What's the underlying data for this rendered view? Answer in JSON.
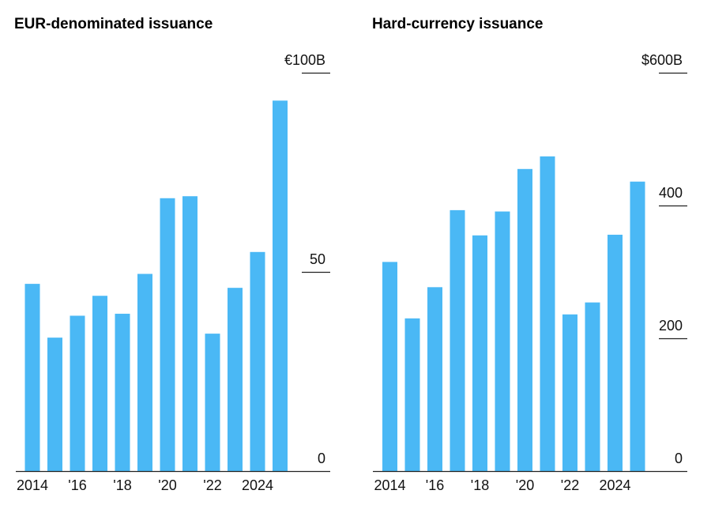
{
  "chart_data": [
    {
      "type": "bar",
      "title": "EUR-denominated issuance",
      "x": [
        2014,
        2015,
        2016,
        2017,
        2018,
        2019,
        2020,
        2021,
        2022,
        2023,
        2024,
        2025
      ],
      "values": [
        47,
        33.5,
        39,
        44,
        39.5,
        49.5,
        68.5,
        69,
        34.5,
        46,
        55,
        93
      ],
      "y_ticks": [
        "€100B",
        "50",
        "0"
      ],
      "y_tick_values": [
        100,
        50,
        0
      ],
      "x_tick_labels": [
        "2014",
        "'16",
        "'18",
        "'20",
        "'22",
        "2024"
      ],
      "x_tick_values": [
        2014,
        2016,
        2018,
        2020,
        2022,
        2024
      ],
      "ylim": [
        0,
        100
      ],
      "xlabel": "",
      "ylabel": "",
      "grid": false,
      "bar_color": "#4ab8f5"
    },
    {
      "type": "bar",
      "title": "Hard-currency issuance",
      "x": [
        2014,
        2015,
        2016,
        2017,
        2018,
        2019,
        2020,
        2021,
        2022,
        2023,
        2024,
        2025
      ],
      "values": [
        315,
        230,
        277,
        393,
        355,
        391,
        455,
        474,
        236,
        254,
        356,
        436
      ],
      "y_ticks": [
        "$600B",
        "400",
        "200",
        "0"
      ],
      "y_tick_values": [
        600,
        400,
        200,
        0
      ],
      "x_tick_labels": [
        "2014",
        "'16",
        "'18",
        "'20",
        "'22",
        "2024"
      ],
      "x_tick_values": [
        2014,
        2016,
        2018,
        2020,
        2022,
        2024
      ],
      "ylim": [
        0,
        600
      ],
      "xlabel": "",
      "ylabel": "",
      "grid": false,
      "bar_color": "#4ab8f5"
    }
  ]
}
